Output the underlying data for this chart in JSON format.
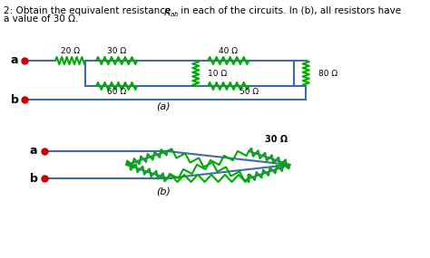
{
  "title_line1": "2: Obtain the equivalent resistance R",
  "title_sub": "ab",
  "title_line1_end": " in each of the circuits. In (b), all resistors have",
  "title_line2": "a value of 30 Ω.",
  "label_a": "a",
  "label_b": "b",
  "wire_color": "#4169b0",
  "resistor_color_green": "#00aa00",
  "resistor_color_blue": "#4169b0",
  "node_color": "#cc0000",
  "text_color": "#000000",
  "bg_color": "#ffffff",
  "resistors_a": {
    "R1": "20 Ω",
    "R2": "30 Ω",
    "R3": "40 Ω",
    "R4": "60 Ω",
    "R5": "10 Ω",
    "R6": "50 Ω",
    "R7": "80 Ω"
  },
  "label_a_circ": "(a)",
  "label_b_circ": "(b)",
  "resistor_30": "30 Ω"
}
